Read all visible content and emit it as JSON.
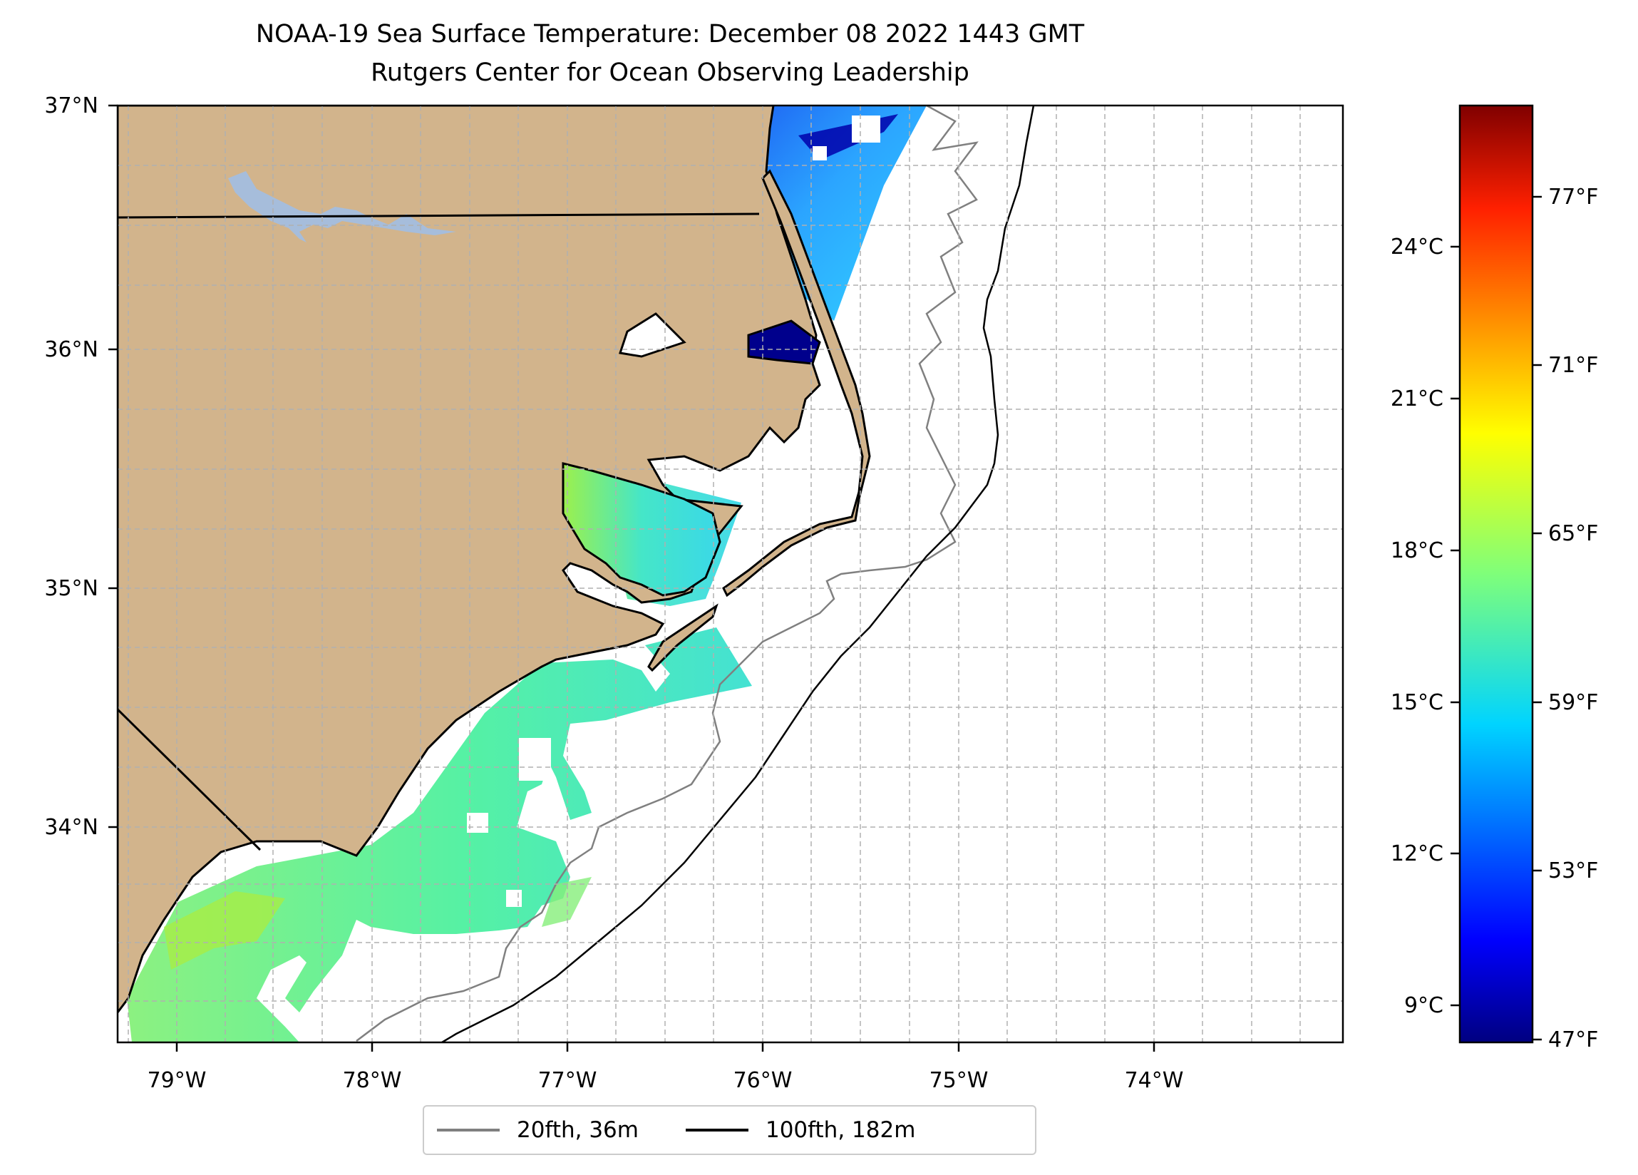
{
  "title": "NOAA-19 Sea Surface Temperature: December 08 2022 1443 GMT",
  "subtitle": "Rutgers Center for Ocean Observing Leadership",
  "map": {
    "lon_labels": [
      "79°W",
      "78°W",
      "77°W",
      "76°W",
      "75°W",
      "74°W"
    ],
    "lat_labels": [
      "37°N",
      "36°N",
      "35°N",
      "34°N"
    ],
    "colors": {
      "land": "#d2b48c",
      "lake": "#a6bddb",
      "coastline": "#000000",
      "grid": "#b0b0b0",
      "isobath_20fth": "#808080",
      "isobath_100fth": "#000000"
    }
  },
  "colorbar": {
    "colormap": "jet",
    "celsius_labels": [
      "24°C",
      "21°C",
      "18°C",
      "15°C",
      "12°C",
      "9°C"
    ],
    "fahrenheit_labels": [
      "77°F",
      "71°F",
      "65°F",
      "59°F",
      "53°F",
      "47°F"
    ]
  },
  "legend": {
    "items": [
      {
        "label": "20fth, 36m",
        "color": "#808080"
      },
      {
        "label": "100fth, 182m",
        "color": "#000000"
      }
    ]
  }
}
